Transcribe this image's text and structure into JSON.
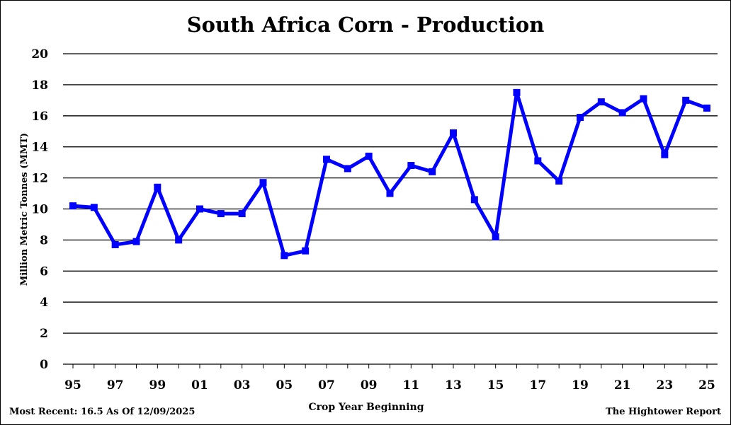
{
  "chart_data": {
    "type": "line",
    "title": "South Africa Corn - Production",
    "xlabel": "Crop Year Beginning",
    "ylabel": "Million Metric Tonnes (MMT)",
    "ylim": [
      0,
      20
    ],
    "yticks": [
      0,
      2,
      4,
      6,
      8,
      10,
      12,
      14,
      16,
      18,
      20
    ],
    "grid": true,
    "series_color": "#0000FF",
    "x": [
      "95",
      "96",
      "97",
      "98",
      "99",
      "00",
      "01",
      "02",
      "03",
      "04",
      "05",
      "06",
      "07",
      "08",
      "09",
      "10",
      "11",
      "12",
      "13",
      "14",
      "15",
      "16",
      "17",
      "18",
      "19",
      "20",
      "21",
      "22",
      "23",
      "24",
      "25"
    ],
    "xtick_labels": [
      "95",
      "97",
      "99",
      "01",
      "03",
      "05",
      "07",
      "09",
      "11",
      "13",
      "15",
      "17",
      "19",
      "21",
      "23",
      "25"
    ],
    "values": [
      10.2,
      10.1,
      7.7,
      7.9,
      11.4,
      8.0,
      10.0,
      9.7,
      9.7,
      11.7,
      7.0,
      7.3,
      13.2,
      12.6,
      13.4,
      11.0,
      12.8,
      12.4,
      14.9,
      10.6,
      8.2,
      17.5,
      13.1,
      11.8,
      15.9,
      16.9,
      16.2,
      17.1,
      13.5,
      17.0,
      16.5
    ]
  },
  "footer": {
    "left": "Most Recent: 16.5 As Of 12/09/2025",
    "right": "The Hightower Report"
  }
}
